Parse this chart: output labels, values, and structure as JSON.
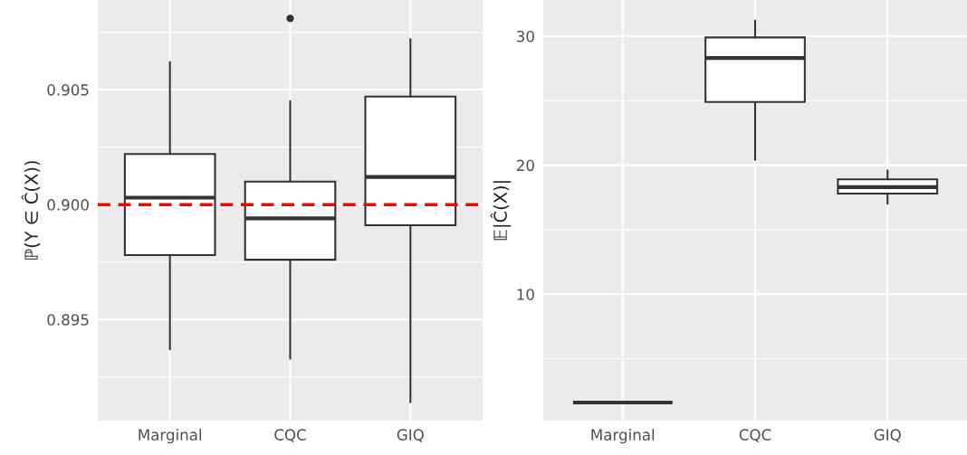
{
  "chart_data": [
    {
      "type": "box",
      "ylabel": "ℙ(Y ∈ Ĉ(X))",
      "categories": [
        "Marginal",
        "CQC",
        "GIQ"
      ],
      "boxes": [
        {
          "low": 0.8937,
          "q1": 0.8978,
          "median": 0.9003,
          "q3": 0.9022,
          "high": 0.9062
        },
        {
          "low": 0.8933,
          "q1": 0.8976,
          "median": 0.8994,
          "q3": 0.901,
          "high": 0.9045,
          "outliers": [
            0.9081
          ]
        },
        {
          "low": 0.8914,
          "q1": 0.8991,
          "median": 0.9012,
          "q3": 0.9047,
          "high": 0.9072
        }
      ],
      "ylim": [
        0.8906,
        0.9089
      ],
      "yticks": [
        {
          "value": 0.8925,
          "label": null
        },
        0.895,
        {
          "value": 0.8975,
          "label": null
        },
        {
          "value": 0.9,
          "label": "0.900"
        },
        {
          "value": 0.9025,
          "label": null
        },
        0.905,
        {
          "value": 0.9075,
          "label": null
        }
      ],
      "ref_lines": [
        {
          "axis": "y",
          "value": 0.9,
          "color": "#ff0000",
          "line_style": "dashed"
        }
      ],
      "grid": true
    },
    {
      "type": "box",
      "ylabel": "𝔼|Ĉ(X)|",
      "categories": [
        "Marginal",
        "CQC",
        "GIQ"
      ],
      "boxes": [
        {
          "low": 1.6,
          "q1": 1.6,
          "median": 1.6,
          "q3": 1.6,
          "high": 1.6
        },
        {
          "low": 20.4,
          "q1": 24.9,
          "median": 28.3,
          "q3": 29.9,
          "high": 31.2
        },
        {
          "low": 17.0,
          "q1": 17.8,
          "median": 18.3,
          "q3": 18.9,
          "high": 19.6
        }
      ],
      "ylim": [
        0.2,
        32.8
      ],
      "yticks": [
        {
          "value": 5,
          "label": null
        },
        10,
        {
          "value": 15,
          "label": null
        },
        20,
        {
          "value": 25,
          "label": null
        },
        30
      ],
      "grid": true
    }
  ]
}
